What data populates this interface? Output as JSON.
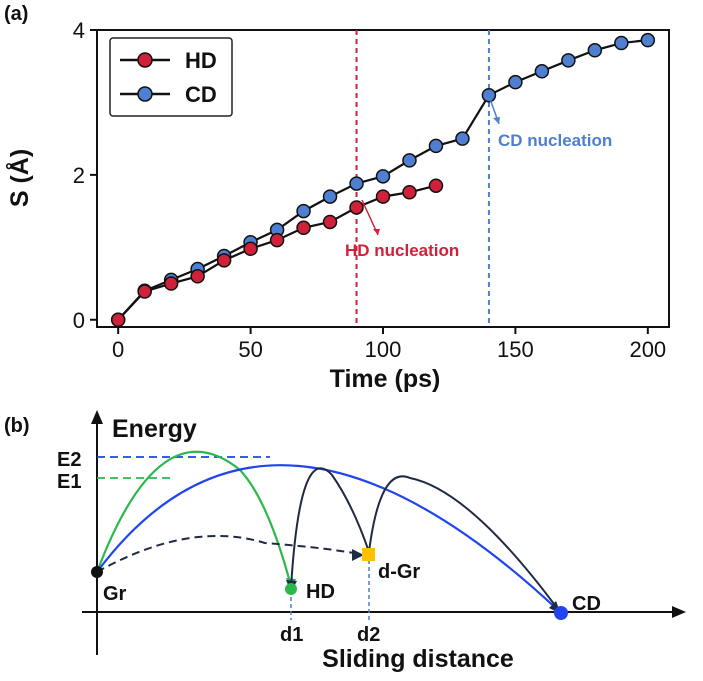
{
  "chart_data": [
    {
      "panel": "(a)",
      "type": "line",
      "xlabel": "Time (ps)",
      "ylabel": "S (Å)",
      "xlim": [
        -8,
        208
      ],
      "ylim": [
        -0.1,
        4.0
      ],
      "xticks": [
        0,
        50,
        100,
        150,
        200
      ],
      "yticks": [
        0,
        2,
        4
      ],
      "legend_position": "top-left",
      "series": [
        {
          "name": "HD",
          "color": "#d0213a",
          "x": [
            0,
            10,
            20,
            30,
            40,
            50,
            60,
            70,
            80,
            90,
            100,
            110,
            120
          ],
          "y": [
            0.0,
            0.39,
            0.5,
            0.6,
            0.82,
            0.98,
            1.1,
            1.27,
            1.35,
            1.55,
            1.7,
            1.76,
            1.85
          ]
        },
        {
          "name": "CD",
          "color": "#4f7fd0",
          "x": [
            0,
            10,
            20,
            30,
            40,
            50,
            60,
            70,
            80,
            90,
            100,
            110,
            120,
            130,
            140,
            150,
            160,
            170,
            180,
            190,
            200
          ],
          "y": [
            0.0,
            0.4,
            0.55,
            0.7,
            0.88,
            1.07,
            1.24,
            1.5,
            1.7,
            1.88,
            1.98,
            2.2,
            2.4,
            2.5,
            3.1,
            3.28,
            3.43,
            3.58,
            3.72,
            3.82,
            3.86
          ]
        }
      ],
      "annotations": [
        {
          "text": "HD nucleation",
          "x": 90,
          "color": "#d0213a"
        },
        {
          "text": "CD nucleation",
          "x": 140,
          "color": "#4f7fd0"
        }
      ]
    },
    {
      "panel": "(b)",
      "type": "diagram",
      "ylabel": "Energy",
      "xlabel": "Sliding distance",
      "level_labels": [
        "E2",
        "E1"
      ],
      "state_labels": [
        "Gr",
        "HD",
        "d-Gr",
        "CD"
      ],
      "position_labels": [
        "d1",
        "d2"
      ],
      "colors": {
        "green": "#2db84c",
        "blue": "#1f44f0",
        "navy": "#1f2a44",
        "orange": "#ffc000"
      }
    }
  ]
}
